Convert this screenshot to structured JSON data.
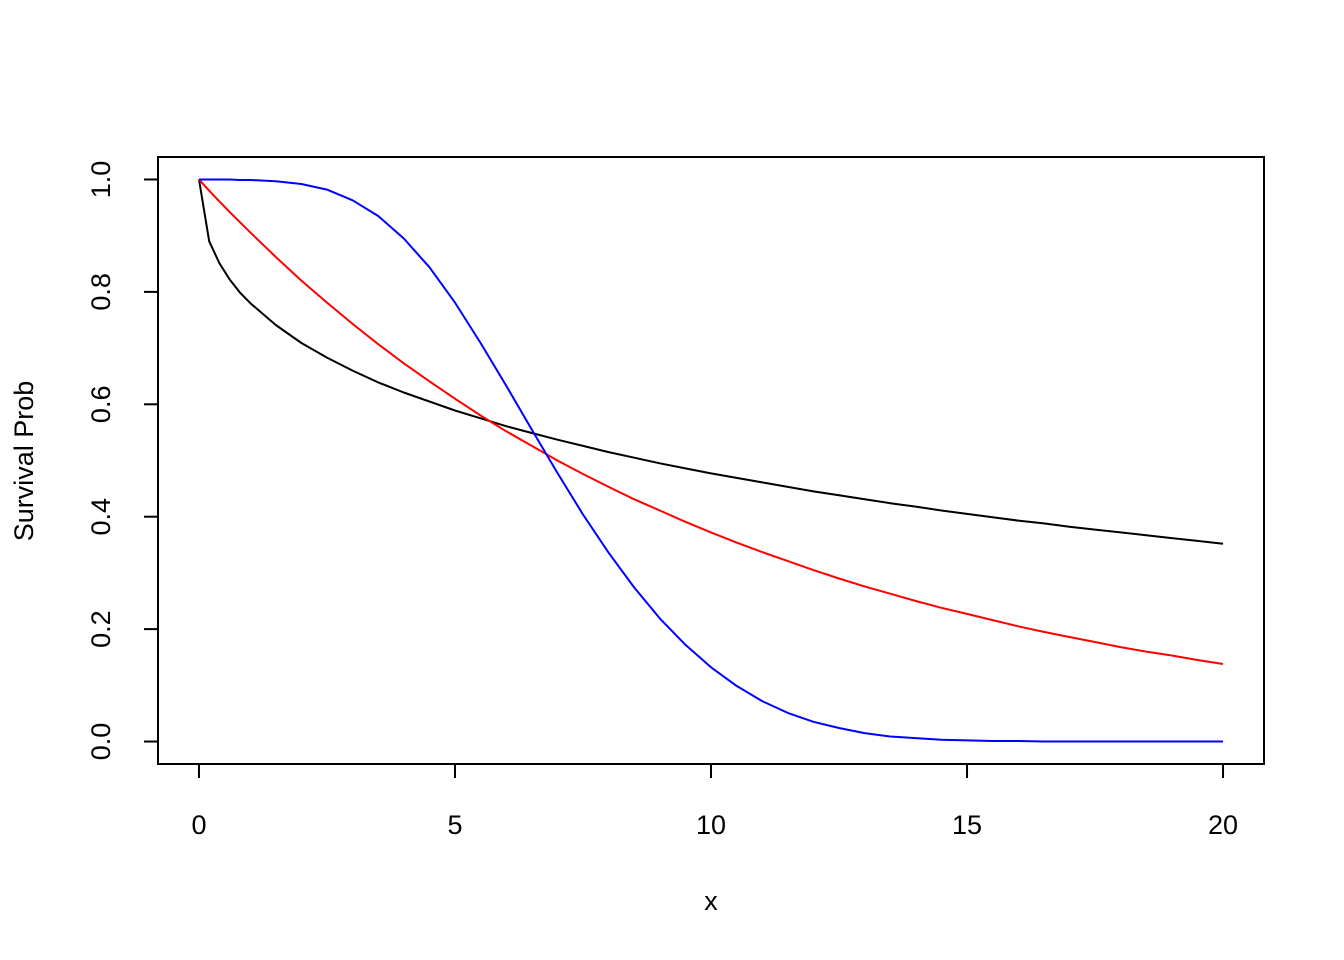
{
  "chart_data": {
    "type": "line",
    "title": "",
    "xlabel": "x",
    "ylabel": "Survival Prob",
    "xlim": [
      -0.8,
      20.8
    ],
    "ylim": [
      -0.04,
      1.04
    ],
    "xticks": [
      0,
      5,
      10,
      15,
      20
    ],
    "xtick_labels": [
      "0",
      "5",
      "10",
      "15",
      "20"
    ],
    "yticks": [
      0.0,
      0.2,
      0.4,
      0.6,
      0.8,
      1.0
    ],
    "ytick_labels": [
      "0.0",
      "0.2",
      "0.4",
      "0.6",
      "0.8",
      "1.0"
    ],
    "grid": false,
    "legend": "none",
    "x": [
      0,
      0.2,
      0.4,
      0.6,
      0.8,
      1,
      1.5,
      2,
      2.5,
      3,
      3.5,
      4,
      4.5,
      5,
      5.5,
      6,
      6.5,
      7,
      7.5,
      8,
      8.5,
      9,
      9.5,
      10,
      10.5,
      11,
      11.5,
      12,
      12.5,
      13,
      13.5,
      14,
      14.5,
      15,
      15.5,
      16,
      16.5,
      17,
      17.5,
      18,
      18.5,
      19,
      19.5,
      20
    ],
    "series": [
      {
        "color": "#000000",
        "values": [
          1.0,
          0.89,
          0.851,
          0.822,
          0.799,
          0.78,
          0.741,
          0.709,
          0.683,
          0.66,
          0.639,
          0.621,
          0.605,
          0.589,
          0.575,
          0.561,
          0.549,
          0.537,
          0.526,
          0.515,
          0.505,
          0.495,
          0.486,
          0.477,
          0.469,
          0.461,
          0.453,
          0.445,
          0.438,
          0.431,
          0.424,
          0.418,
          0.411,
          0.405,
          0.399,
          0.393,
          0.388,
          0.382,
          0.377,
          0.372,
          0.367,
          0.362,
          0.357,
          0.352
        ]
      },
      {
        "color": "#ff0000",
        "values": [
          1.0,
          0.98,
          0.961,
          0.942,
          0.924,
          0.906,
          0.862,
          0.82,
          0.781,
          0.743,
          0.707,
          0.673,
          0.641,
          0.61,
          0.58,
          0.552,
          0.526,
          0.5,
          0.476,
          0.453,
          0.431,
          0.411,
          0.391,
          0.372,
          0.354,
          0.337,
          0.321,
          0.305,
          0.29,
          0.276,
          0.263,
          0.25,
          0.238,
          0.227,
          0.216,
          0.205,
          0.195,
          0.186,
          0.177,
          0.168,
          0.16,
          0.153,
          0.145,
          0.138
        ]
      },
      {
        "color": "#0000ff",
        "values": [
          1.0,
          1.0,
          1.0,
          1.0,
          0.999,
          0.999,
          0.997,
          0.992,
          0.982,
          0.963,
          0.935,
          0.895,
          0.844,
          0.781,
          0.709,
          0.633,
          0.555,
          0.478,
          0.404,
          0.336,
          0.274,
          0.219,
          0.172,
          0.132,
          0.099,
          0.072,
          0.051,
          0.035,
          0.024,
          0.015,
          0.009,
          0.006,
          0.003,
          0.002,
          0.001,
          0.001,
          0.0,
          0.0,
          0.0,
          0.0,
          0.0,
          0.0,
          0.0,
          0.0
        ]
      }
    ]
  }
}
